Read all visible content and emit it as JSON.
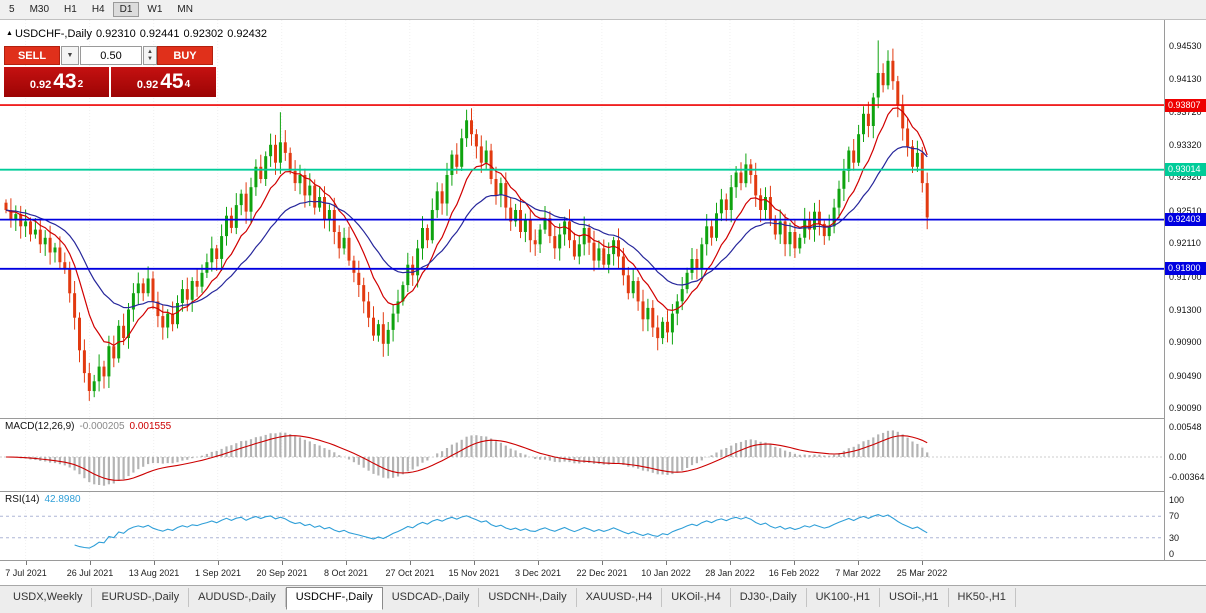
{
  "toolbar": {
    "timeframes": [
      {
        "label": "5",
        "active": false
      },
      {
        "label": "M30",
        "active": false
      },
      {
        "label": "H1",
        "active": false
      },
      {
        "label": "H4",
        "active": false
      },
      {
        "label": "D1",
        "active": true
      },
      {
        "label": "W1",
        "active": false
      },
      {
        "label": "MN",
        "active": false
      }
    ]
  },
  "chart_header": {
    "symbol": "USDCHF-,Daily",
    "open": "0.92310",
    "high": "0.92441",
    "low": "0.92302",
    "close": "0.92432"
  },
  "trade_widget": {
    "sell_label": "SELL",
    "buy_label": "BUY",
    "volume": "0.50",
    "sell": {
      "prefix": "0.92",
      "big": "43",
      "sup": "2"
    },
    "buy": {
      "prefix": "0.92",
      "big": "45",
      "sup": "4"
    }
  },
  "price_axis": {
    "labels": [
      "0.94530",
      "0.94130",
      "0.93720",
      "0.93320",
      "0.92920",
      "0.92510",
      "0.92110",
      "0.91700",
      "0.91300",
      "0.90900",
      "0.90490",
      "0.90090"
    ]
  },
  "macd": {
    "label": "MACD(12,26,9)",
    "value1": "-0.000205",
    "value2": "0.001555",
    "axis": [
      {
        "label": "0.00548",
        "value": 0.00548
      },
      {
        "label": "0.00",
        "value": 0
      },
      {
        "label": "-0.00364",
        "value": -0.00364
      }
    ]
  },
  "rsi": {
    "label": "RSI(14)",
    "value": "42.8980",
    "axis": [
      {
        "label": "100",
        "value": 100
      },
      {
        "label": "70",
        "value": 70
      },
      {
        "label": "30",
        "value": 30
      },
      {
        "label": "0",
        "value": 0
      }
    ]
  },
  "date_axis": [
    "7 Jul 2021",
    "26 Jul 2021",
    "13 Aug 2021",
    "1 Sep 2021",
    "20 Sep 2021",
    "8 Oct 2021",
    "27 Oct 2021",
    "15 Nov 2021",
    "3 Dec 2021",
    "22 Dec 2021",
    "10 Jan 2022",
    "28 Jan 2022",
    "16 Feb 2022",
    "7 Mar 2022",
    "25 Mar 2022"
  ],
  "tabs": [
    {
      "label": "USDX,Weekly",
      "active": false
    },
    {
      "label": "EURUSD-,Daily",
      "active": false
    },
    {
      "label": "AUDUSD-,Daily",
      "active": false
    },
    {
      "label": "USDCHF-,Daily",
      "active": true
    },
    {
      "label": "USDCAD-,Daily",
      "active": false
    },
    {
      "label": "USDCNH-,Daily",
      "active": false
    },
    {
      "label": "XAUUSD-,H4",
      "active": false
    },
    {
      "label": "UKOil-,H4",
      "active": false
    },
    {
      "label": "DJ30-,Daily",
      "active": false
    },
    {
      "label": "UK100-,H1",
      "active": false
    },
    {
      "label": "USOil-,H1",
      "active": false
    },
    {
      "label": "HK50-,H1",
      "active": false
    }
  ],
  "chart_data": {
    "type": "candlestick",
    "symbol": "USDCHF-,Daily",
    "ohlc_display": {
      "open": 0.9231,
      "high": 0.92441,
      "low": 0.92302,
      "close": 0.92432
    },
    "indicators": [
      {
        "name": "MACD(12,26,9)",
        "current": [
          -0.000205,
          0.001555
        ],
        "axis_range": [
          -0.00364,
          0.00548
        ]
      },
      {
        "name": "RSI(14)",
        "current": 42.898,
        "levels": [
          30,
          70
        ],
        "axis_range": [
          0,
          100
        ]
      }
    ],
    "hlines": [
      {
        "label": "0.93807",
        "value": 0.93807,
        "color": "#ee0000",
        "width": 1.6
      },
      {
        "label": "0.93014",
        "value": 0.93014,
        "color": "#00cc99",
        "width": 1.8
      },
      {
        "label": "0.92403",
        "value": 0.92403,
        "color": "#0000e0",
        "width": 1.8
      },
      {
        "label": "0.91800",
        "value": 0.918,
        "color": "#0000e0",
        "width": 1.8
      }
    ],
    "closes": [
      0.9252,
      0.924,
      0.9247,
      0.9232,
      0.9238,
      0.9222,
      0.9228,
      0.921,
      0.9218,
      0.92,
      0.9206,
      0.9188,
      0.918,
      0.915,
      0.912,
      0.908,
      0.9052,
      0.903,
      0.9042,
      0.906,
      0.9048,
      0.9085,
      0.907,
      0.911,
      0.9095,
      0.913,
      0.915,
      0.9162,
      0.915,
      0.9168,
      0.914,
      0.9122,
      0.9108,
      0.9125,
      0.9112,
      0.9138,
      0.9155,
      0.9142,
      0.9165,
      0.9158,
      0.9175,
      0.9188,
      0.9205,
      0.9192,
      0.922,
      0.9245,
      0.923,
      0.9258,
      0.9272,
      0.925,
      0.928,
      0.9305,
      0.929,
      0.9318,
      0.9332,
      0.931,
      0.9335,
      0.9322,
      0.93,
      0.9285,
      0.9295,
      0.927,
      0.9282,
      0.9255,
      0.9268,
      0.924,
      0.9252,
      0.9225,
      0.9205,
      0.9218,
      0.919,
      0.9175,
      0.916,
      0.914,
      0.912,
      0.9098,
      0.9112,
      0.9088,
      0.9105,
      0.9125,
      0.914,
      0.916,
      0.9185,
      0.9172,
      0.9205,
      0.923,
      0.9215,
      0.9252,
      0.9275,
      0.926,
      0.9295,
      0.932,
      0.9305,
      0.934,
      0.9362,
      0.9345,
      0.933,
      0.931,
      0.9325,
      0.929,
      0.927,
      0.9285,
      0.9255,
      0.9238,
      0.9252,
      0.9225,
      0.924,
      0.9215,
      0.921,
      0.9228,
      0.9242,
      0.922,
      0.9205,
      0.9222,
      0.9238,
      0.9215,
      0.9195,
      0.921,
      0.923,
      0.9212,
      0.919,
      0.9205,
      0.9185,
      0.9198,
      0.9215,
      0.9195,
      0.9172,
      0.915,
      0.9165,
      0.914,
      0.9118,
      0.9132,
      0.9108,
      0.9095,
      0.9115,
      0.9102,
      0.9125,
      0.914,
      0.9155,
      0.9175,
      0.9192,
      0.918,
      0.921,
      0.9232,
      0.9218,
      0.9248,
      0.9265,
      0.9252,
      0.928,
      0.9298,
      0.9285,
      0.9308,
      0.9295,
      0.927,
      0.9252,
      0.9268,
      0.924,
      0.9222,
      0.9238,
      0.921,
      0.9225,
      0.9205,
      0.9218,
      0.924,
      0.9228,
      0.925,
      0.9235,
      0.922,
      0.9232,
      0.9255,
      0.9278,
      0.93,
      0.9325,
      0.931,
      0.9345,
      0.937,
      0.9355,
      0.939,
      0.942,
      0.9405,
      0.9435,
      0.941,
      0.938,
      0.9352,
      0.933,
      0.9305,
      0.9322,
      0.9285,
      0.9243
    ],
    "extra_highs": {
      "56": 0.9372,
      "94": 0.9375,
      "178": 0.946,
      "180": 0.9448
    },
    "extra_lows": {
      "17": 0.9018,
      "77": 0.9072,
      "133": 0.908
    },
    "colors": {
      "up": "#0fa30f",
      "down": "#e23a10",
      "ma_fast": "#d10000",
      "ma_slow": "#26269b",
      "macd_hist": "#b4b4b4",
      "macd_signal": "#cc0000",
      "rsi_line": "#2f9fd8"
    }
  }
}
